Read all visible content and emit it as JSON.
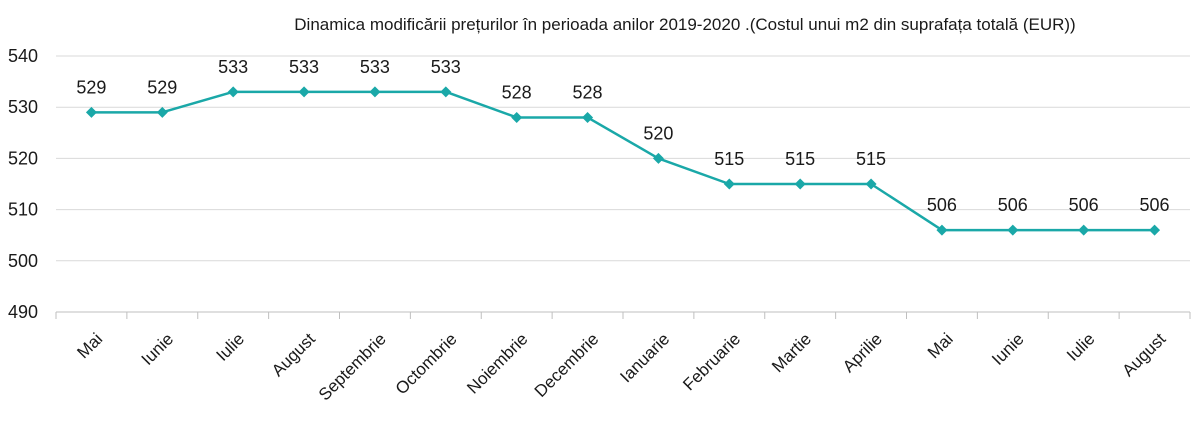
{
  "chart_data": {
    "type": "line",
    "title": "Dinamica modificării prețurilor în perioada anilor 2019-2020 .(Costul unui m2 din suprafața totală (EUR))",
    "categories": [
      "Mai",
      "Iunie",
      "Iulie",
      "August",
      "Septembrie",
      "Octombrie",
      "Noiembrie",
      "Decembrie",
      "Ianuarie",
      "Februarie",
      "Martie",
      "Aprilie",
      "Mai",
      "Iunie",
      "Iulie",
      "August"
    ],
    "series": [
      {
        "values": [
          529,
          529,
          533,
          533,
          533,
          533,
          528,
          528,
          520,
          515,
          515,
          515,
          506,
          506,
          506,
          506
        ]
      }
    ],
    "xlabel": "",
    "ylabel": "",
    "ylim": [
      490,
      540
    ],
    "yticks": [
      490,
      500,
      510,
      520,
      530,
      540
    ],
    "grid": true,
    "legend": "none",
    "data_labels": true,
    "colors": {
      "line": "#1aa8a8",
      "marker": "#1aa8a8",
      "grid": "#d9d9d9",
      "text": "#1a1a1a"
    }
  }
}
